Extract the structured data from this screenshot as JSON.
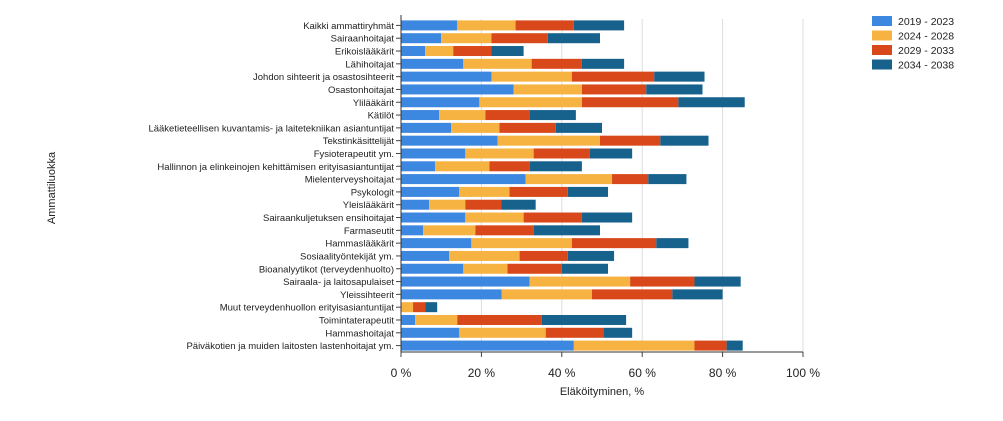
{
  "chart_data": {
    "type": "bar",
    "orientation": "horizontal",
    "stacked": true,
    "xlabel": "Eläköityminen, %",
    "ylabel": "Ammattiluokka",
    "xlim": [
      0,
      100
    ],
    "xticks": [
      0,
      20,
      40,
      60,
      80,
      100
    ],
    "tick_suffix": " %",
    "grid": true,
    "legend_position": "top-right",
    "categories": [
      "Kaikki ammattiryhmät",
      "Sairaanhoitajat",
      "Erikoislääkärit",
      "Lähihoitajat",
      "Johdon sihteerit ja osastosihteerit",
      "Osastonhoitajat",
      "Ylilääkärit",
      "Kätilöt",
      "Lääketieteellisen kuvantamis- ja laitetekniikan asiantuntijat",
      "Tekstinkäsittelijät",
      "Fysioterapeutit ym.",
      "Hallinnon ja elinkeinojen kehittämisen erityisasiantuntijat",
      "Mielenterveyshoitajat",
      "Psykologit",
      "Yleislääkärit",
      "Sairaankuljetuksen ensihoitajat",
      "Farmaseutit",
      "Hammaslääkärit",
      "Sosiaalityöntekijät ym.",
      "Bioanalyytikot (terveydenhuolto)",
      "Sairaala- ja laitosapulaiset",
      "Yleissihteerit",
      "Muut terveydenhuollon erityisasiantuntijat",
      "Toimintaterapeutit",
      "Hammashoitajat",
      "Päiväkotien ja muiden laitosten lastenhoitajat ym."
    ],
    "series": [
      {
        "name": "2019 - 2023",
        "color": "#3c87e0",
        "values": [
          14,
          10,
          6,
          15.5,
          22.5,
          28,
          19.5,
          9.5,
          12.5,
          24,
          16,
          8.5,
          31,
          14.5,
          7,
          16,
          5.5,
          17.5,
          12,
          15.5,
          32,
          25,
          0,
          3.5,
          14.5,
          43
        ]
      },
      {
        "name": "2024 - 2028",
        "color": "#f7b342",
        "values": [
          14.5,
          12.5,
          7,
          17,
          20,
          17,
          25.5,
          11.5,
          12,
          25.5,
          17,
          13.5,
          21.5,
          12.5,
          9,
          14.5,
          13,
          25,
          17.5,
          11,
          25,
          22.5,
          3,
          10.5,
          21.5,
          30
        ]
      },
      {
        "name": "2029 - 2033",
        "color": "#d9481a",
        "values": [
          14.5,
          14,
          9.5,
          12.5,
          20.5,
          16,
          24,
          11,
          14,
          15,
          14,
          10,
          9,
          14.5,
          9,
          14.5,
          14.5,
          21,
          12,
          13.5,
          16,
          20,
          3,
          21,
          14.5,
          8
        ]
      },
      {
        "name": "2034 - 2038",
        "color": "#17618d",
        "values": [
          12.5,
          13,
          8,
          10.5,
          12.5,
          14,
          16.5,
          11.5,
          11.5,
          12,
          10.5,
          13,
          9.5,
          10,
          8.5,
          12.5,
          16.5,
          8,
          11.5,
          11.5,
          11.5,
          12.5,
          3,
          21,
          7,
          4
        ]
      }
    ]
  }
}
